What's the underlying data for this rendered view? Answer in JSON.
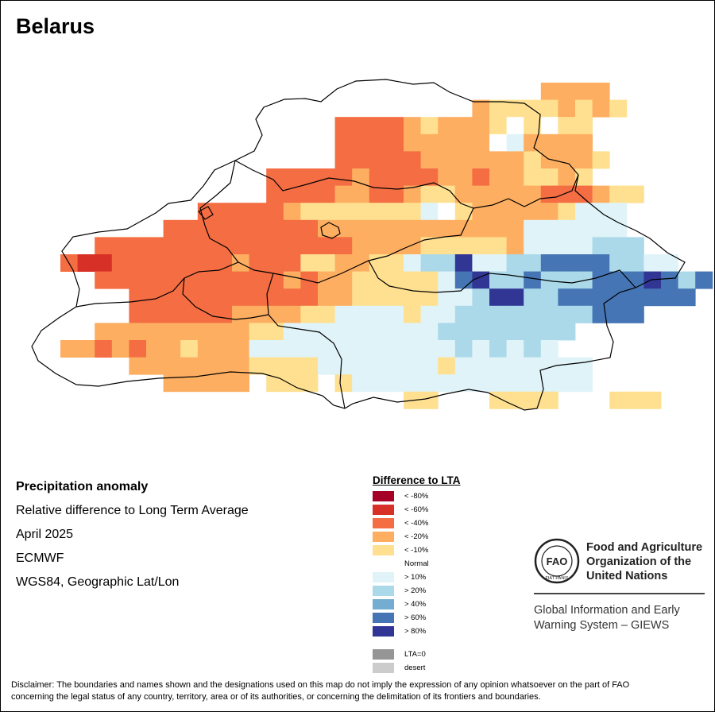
{
  "title": "Belarus",
  "info": {
    "line1": "Precipitation anomaly",
    "line2": "Relative difference to Long Term Average",
    "line3": "April 2025",
    "line4": "ECMWF",
    "line5": "WGS84, Geographic Lat/Lon"
  },
  "legend": {
    "title": "Difference to LTA",
    "items": [
      {
        "label": "< -80%",
        "color": "#a50026"
      },
      {
        "label": "< -60%",
        "color": "#d73027"
      },
      {
        "label": "< -40%",
        "color": "#f46d43"
      },
      {
        "label": "< -20%",
        "color": "#fdae61"
      },
      {
        "label": "< -10%",
        "color": "#fee090"
      },
      {
        "label": "Normal",
        "color": "#ffffff"
      },
      {
        "label": "> 10%",
        "color": "#e0f3f8"
      },
      {
        "label": "> 20%",
        "color": "#abd9e9"
      },
      {
        "label": "> 40%",
        "color": "#74add1"
      },
      {
        "label": "> 60%",
        "color": "#4575b4"
      },
      {
        "label": "> 80%",
        "color": "#313695"
      }
    ],
    "extra": [
      {
        "label": "LTA=0",
        "color": "#969696"
      },
      {
        "label": "desert",
        "color": "#cccccc"
      }
    ]
  },
  "org": {
    "logo_text": "FAO",
    "logo_ring_text": "FIAT PANIS",
    "name_line1": "Food and Agriculture",
    "name_line2": "Organization of the",
    "name_line3": "United Nations",
    "system_line1": "Global Information and Early",
    "system_line2": "Warning System – GIEWS"
  },
  "disclaimer_line1": "Disclaimer: The boundaries and names shown and the designations used on this map do not imply the expression of any opinion whatsoever on the part of FAO",
  "disclaimer_line2": "concerning the legal status of any country, territory, area or of its authorities, or concerning the delimitation of its frontiers and boundaries.",
  "grid_rows": [
    "..............................",
    "..............................",
    "..............................",
    "..............................",
    "..............................",
    "..............................",
    "..............................",
    "..............................",
    "..............................",
    "..............................",
    "..............................",
    "..............................",
    "..............................",
    "..............................",
    "..............................",
    "..............................",
    "..............................",
    "..............................",
    "..............................",
    "..............................",
    "..............................",
    "..............................",
    "..............................",
    "..............................",
    "..............................",
    "..............................",
    "..............................",
    "..............................",
    "..............................",
    "..............................",
    "..............................",
    "..............................",
    "..............................",
    "..............................",
    "..............................",
    "..............................",
    "..............................",
    "..............................",
    "..............................",
    "..............................",
    "..............................",
    "..............................",
    "..............................",
    "..............................",
    "..............................",
    "..............................",
    "..............................",
    "..............................",
    "..............................",
    "..............................",
    "..............................",
    "..............................",
    "..............................",
    "..............................",
    "..............................",
    "..............................",
    "..............................",
    "..............................",
    "..............................",
    "..............................",
    "..............................",
    "..............................",
    "..............................",
    "..............................",
    "..............................",
    "..............................",
    "..............................",
    "..............................",
    "..............................",
    "..............................",
    "..............................",
    "..............................",
    "..............................",
    "..............................",
    "..............................",
    "..............................",
    "..............................",
    "..............................",
    "..............................",
    ".............................."
  ],
  "grid": [
    "..............DDDD...........",
    "............DEEEEDEDE........",
    "........CCCCDEDDD5F5F55......",
    "........CCCCDDDDDF6DDDD......",
    "........CCCCCDDDDDDEDDD5.....",
    "......CCCCCDCCCCDDCDD55D5....",
    "......CCCCDDCCD55DDDDDCCCD55....",
    "....CCCCCD5E55555GFEDDDDD566G....",
    "...CCCCCCCCCDDDDDDDDDDDD66GGG6...",
    ".CCCCCCCCCCCCCCCDDDD55555DGGGGHHH..",
    "CBBCCCCCCCDCCC55DD55GHHJGGHHIIIIHHGG",
    ".CCCCCCCCCCCDCDDE5555GIJHHIHHHIIIJIHI",
    "..CCCCCCCCCCCDD55555GGHJJHHIIIIIIII.",
    "..CCCCCCDDDDEEGGGG5GGHHHHHHHHIII.",
    ".DDDDDDDDD55G66G6GGGGHHHHHHHH.",
    "DDCDCDDEDDD66G66G666GGGHGHGHG",
    "..DDDDDDD5555GG66GGG5G66GGGGG",
    "...DDDDD.555.5GGG66G6GGG6GG6",
    "..........55...5555...555..."
  ]
}
